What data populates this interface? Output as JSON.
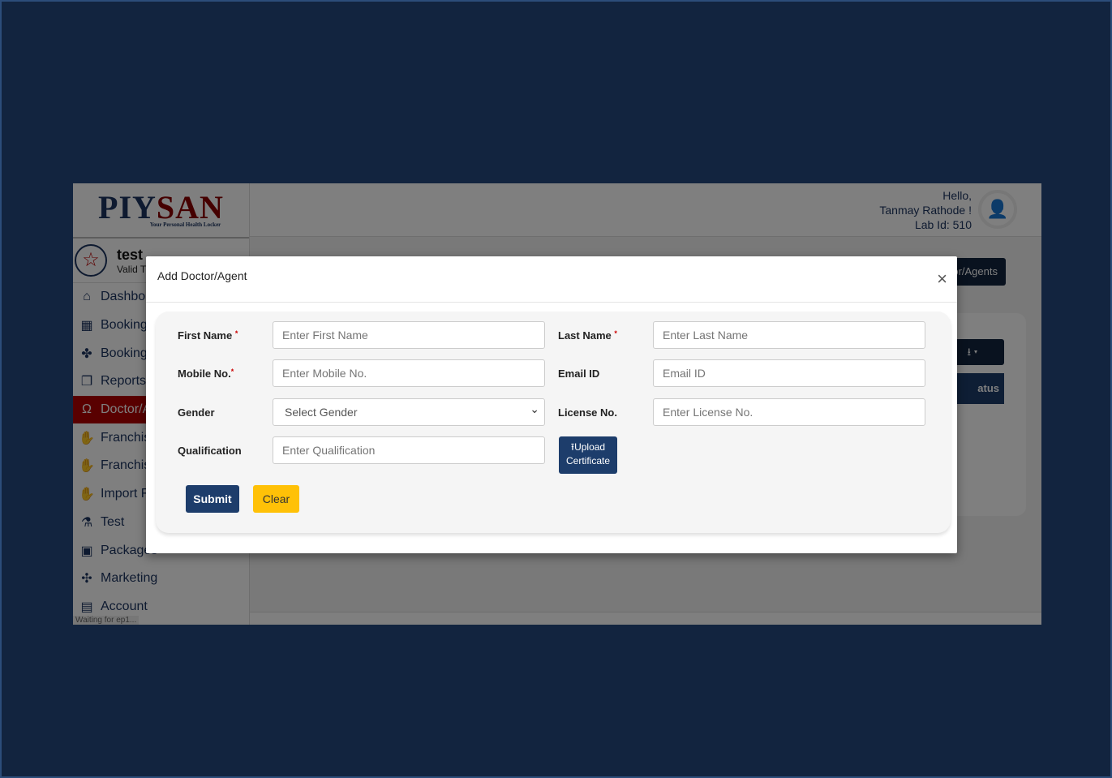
{
  "brand": {
    "logo_left": "PIY",
    "logo_right": "SAN",
    "tagline": "Your Personal Health Locker"
  },
  "user_card": {
    "name": "test",
    "sub": "Valid T"
  },
  "sidebar": {
    "items": [
      {
        "label": "Dashbo",
        "icon": "home-icon"
      },
      {
        "label": "Booking",
        "icon": "calendar-icon"
      },
      {
        "label": "Booking",
        "icon": "money-icon"
      },
      {
        "label": "Reports",
        "icon": "copy-icon"
      },
      {
        "label": "Doctor/A",
        "icon": "stethoscope-icon",
        "active": true
      },
      {
        "label": "Franchis",
        "icon": "handshake-icon"
      },
      {
        "label": "Franchis",
        "icon": "handshake-icon"
      },
      {
        "label": "Import F",
        "icon": "handshake-icon"
      },
      {
        "label": "Test",
        "icon": "lab-icon"
      },
      {
        "label": "Packages",
        "icon": "box-icon"
      },
      {
        "label": "Marketing",
        "icon": "network-icon"
      },
      {
        "label": "Account",
        "icon": "account-icon"
      }
    ]
  },
  "header": {
    "hello": "Hello,",
    "name": "Tanmay Rathode !",
    "lab": "Lab Id: 510"
  },
  "background": {
    "list_button": "or/Agents",
    "table_header": "atus",
    "status": "Waiting for ep1..."
  },
  "modal": {
    "title": "Add Doctor/Agent",
    "close": "×",
    "fields": {
      "first_name": {
        "label": "First Name",
        "placeholder": "Enter First Name",
        "required": "*"
      },
      "last_name": {
        "label": "Last Name",
        "placeholder": "Enter Last Name",
        "required": "*"
      },
      "mobile": {
        "label": "Mobile No.",
        "placeholder": "Enter Mobile No.",
        "required": "*"
      },
      "email": {
        "label": "Email ID",
        "placeholder": "Email ID"
      },
      "gender": {
        "label": "Gender",
        "selected": "Select Gender"
      },
      "license": {
        "label": "License No.",
        "placeholder": "Enter License No."
      },
      "qualification": {
        "label": "Qualification",
        "placeholder": "Enter Qualification"
      }
    },
    "upload": {
      "line1": "Upload",
      "line2": "Certificate"
    },
    "submit": "Submit",
    "clear": "Clear"
  }
}
